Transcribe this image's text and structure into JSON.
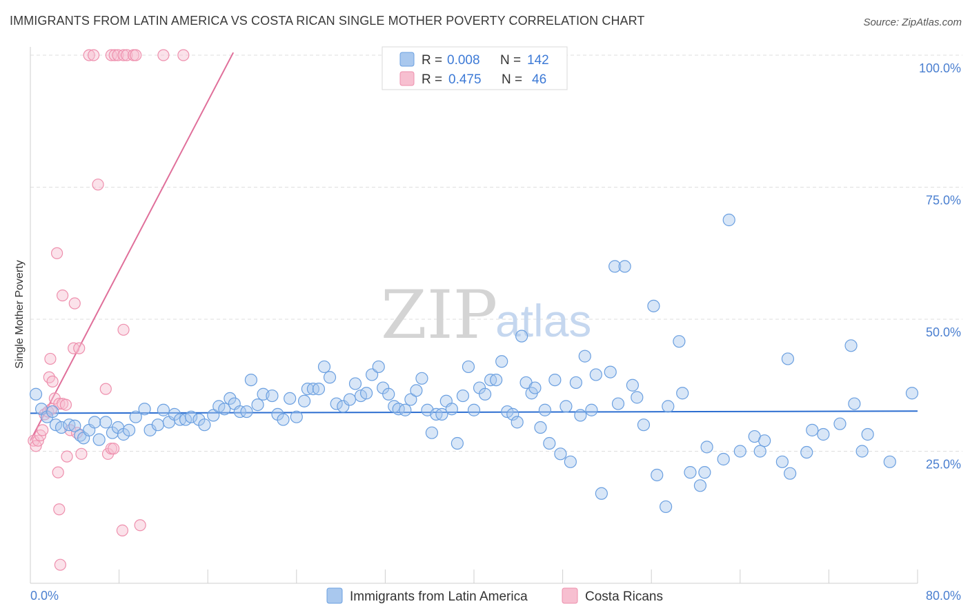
{
  "header": {
    "title": "IMMIGRANTS FROM LATIN AMERICA VS COSTA RICAN SINGLE MOTHER POVERTY CORRELATION CHART",
    "source": "Source: ZipAtlas.com"
  },
  "watermark": {
    "zip": "ZIP",
    "atlas": "atlas"
  },
  "legend_box": {
    "rows": [
      {
        "r_label": "R =",
        "r_value": "0.008",
        "n_label": "N =",
        "n_value": "142"
      },
      {
        "r_label": "R =",
        "r_value": "0.475",
        "n_label": "N =",
        "n_value": "46"
      }
    ]
  },
  "colors": {
    "blue_fill": "#a9c8ee",
    "blue_stroke": "#6a9fe0",
    "blue_line": "#2b6dd0",
    "pink_fill": "#f7bfd0",
    "pink_stroke": "#ee8fad",
    "pink_line": "#e06f9a",
    "tick_text": "#4a7fd0"
  },
  "chart_data": {
    "type": "scatter",
    "title": "IMMIGRANTS FROM LATIN AMERICA VS COSTA RICAN SINGLE MOTHER POVERTY CORRELATION CHART",
    "xlabel": "",
    "ylabel": "Single Mother Poverty",
    "xlim": [
      0,
      80
    ],
    "ylim": [
      0,
      102
    ],
    "x_tick_labels": [
      "0.0%",
      "80.0%"
    ],
    "y_tick_labels": [
      {
        "value": 25,
        "label": "25.0%"
      },
      {
        "value": 50,
        "label": "50.0%"
      },
      {
        "value": 75,
        "label": "75.0%"
      },
      {
        "value": 100,
        "label": "100.0%"
      }
    ],
    "grid": true,
    "legend": "bottom-center",
    "series": [
      {
        "name": "Immigrants from Latin America",
        "color": "#a9c8ee",
        "trend": {
          "x": [
            0,
            80
          ],
          "y": [
            32.2,
            32.6
          ]
        },
        "points": [
          [
            0.5,
            35.8
          ],
          [
            1.0,
            33.0
          ],
          [
            1.5,
            31.5
          ],
          [
            2.0,
            32.5
          ],
          [
            2.3,
            30.0
          ],
          [
            2.8,
            29.5
          ],
          [
            3.5,
            30.0
          ],
          [
            4.0,
            29.8
          ],
          [
            4.5,
            28.0
          ],
          [
            4.8,
            27.5
          ],
          [
            5.3,
            29.0
          ],
          [
            5.8,
            30.5
          ],
          [
            6.2,
            27.2
          ],
          [
            6.8,
            30.5
          ],
          [
            7.4,
            28.5
          ],
          [
            7.9,
            29.5
          ],
          [
            8.4,
            28.2
          ],
          [
            8.9,
            29.0
          ],
          [
            9.5,
            31.5
          ],
          [
            10.3,
            33.0
          ],
          [
            10.8,
            29.0
          ],
          [
            11.5,
            30.0
          ],
          [
            12.0,
            32.8
          ],
          [
            12.5,
            30.5
          ],
          [
            13.0,
            32.0
          ],
          [
            13.5,
            31.0
          ],
          [
            14.0,
            31.0
          ],
          [
            14.5,
            31.5
          ],
          [
            15.2,
            31.0
          ],
          [
            15.7,
            30.0
          ],
          [
            16.5,
            31.8
          ],
          [
            17.0,
            33.5
          ],
          [
            17.5,
            33.0
          ],
          [
            18.0,
            35.0
          ],
          [
            18.4,
            34.0
          ],
          [
            18.9,
            32.5
          ],
          [
            19.5,
            32.5
          ],
          [
            19.9,
            38.5
          ],
          [
            20.5,
            33.8
          ],
          [
            21.0,
            35.8
          ],
          [
            21.8,
            35.5
          ],
          [
            22.3,
            32.0
          ],
          [
            22.8,
            31.0
          ],
          [
            23.4,
            35.0
          ],
          [
            24.0,
            31.5
          ],
          [
            24.7,
            34.5
          ],
          [
            25.0,
            36.8
          ],
          [
            25.5,
            36.8
          ],
          [
            26.0,
            36.8
          ],
          [
            26.5,
            41.0
          ],
          [
            27.0,
            39.0
          ],
          [
            27.6,
            34.0
          ],
          [
            28.2,
            33.5
          ],
          [
            28.8,
            34.8
          ],
          [
            29.3,
            37.8
          ],
          [
            29.8,
            35.5
          ],
          [
            30.3,
            36.0
          ],
          [
            30.8,
            39.5
          ],
          [
            31.4,
            41.0
          ],
          [
            31.8,
            37.0
          ],
          [
            32.3,
            35.8
          ],
          [
            32.8,
            33.5
          ],
          [
            33.2,
            33.0
          ],
          [
            33.8,
            32.8
          ],
          [
            34.3,
            34.8
          ],
          [
            34.8,
            36.5
          ],
          [
            35.3,
            38.8
          ],
          [
            35.8,
            32.8
          ],
          [
            36.2,
            28.5
          ],
          [
            36.6,
            32.0
          ],
          [
            37.1,
            32.0
          ],
          [
            37.5,
            34.5
          ],
          [
            38.0,
            33.0
          ],
          [
            38.5,
            26.5
          ],
          [
            39.0,
            35.5
          ],
          [
            39.5,
            41.0
          ],
          [
            40.0,
            32.8
          ],
          [
            40.5,
            37.0
          ],
          [
            41.0,
            35.8
          ],
          [
            41.5,
            38.5
          ],
          [
            42.0,
            38.5
          ],
          [
            42.5,
            42.0
          ],
          [
            43.0,
            32.5
          ],
          [
            43.5,
            32.0
          ],
          [
            43.9,
            30.5
          ],
          [
            44.3,
            46.8
          ],
          [
            44.7,
            38.0
          ],
          [
            45.2,
            36.0
          ],
          [
            45.5,
            37.0
          ],
          [
            46.0,
            29.5
          ],
          [
            46.4,
            32.8
          ],
          [
            46.8,
            26.5
          ],
          [
            47.3,
            38.5
          ],
          [
            47.8,
            24.5
          ],
          [
            48.3,
            33.5
          ],
          [
            48.7,
            23.0
          ],
          [
            49.2,
            38.0
          ],
          [
            49.6,
            31.8
          ],
          [
            50.0,
            43.0
          ],
          [
            50.6,
            32.8
          ],
          [
            51.0,
            39.5
          ],
          [
            51.5,
            17.0
          ],
          [
            52.3,
            40.0
          ],
          [
            52.7,
            60.0
          ],
          [
            53.0,
            34.0
          ],
          [
            53.6,
            60.0
          ],
          [
            54.3,
            37.5
          ],
          [
            54.7,
            35.2
          ],
          [
            55.3,
            30.0
          ],
          [
            56.2,
            52.5
          ],
          [
            56.5,
            20.5
          ],
          [
            57.3,
            14.5
          ],
          [
            57.5,
            33.5
          ],
          [
            58.5,
            45.8
          ],
          [
            58.8,
            36.0
          ],
          [
            59.5,
            21.0
          ],
          [
            60.4,
            18.5
          ],
          [
            60.8,
            21.0
          ],
          [
            61.0,
            25.8
          ],
          [
            62.5,
            23.5
          ],
          [
            63.0,
            68.8
          ],
          [
            64.0,
            25.0
          ],
          [
            65.3,
            27.8
          ],
          [
            65.8,
            25.0
          ],
          [
            66.2,
            27.0
          ],
          [
            67.8,
            23.0
          ],
          [
            68.3,
            42.5
          ],
          [
            68.5,
            20.8
          ],
          [
            70.0,
            24.8
          ],
          [
            70.5,
            29.0
          ],
          [
            71.5,
            28.2
          ],
          [
            73.0,
            30.2
          ],
          [
            74.0,
            45.0
          ],
          [
            74.3,
            34.0
          ],
          [
            75.0,
            25.0
          ],
          [
            75.5,
            28.2
          ],
          [
            77.5,
            23.0
          ],
          [
            79.5,
            36.0
          ]
        ]
      },
      {
        "name": "Costa Ricans",
        "color": "#f7bfd0",
        "trend": {
          "x": [
            0,
            18.3
          ],
          "y": [
            27.0,
            100.5
          ]
        },
        "points": [
          [
            0.3,
            27.0
          ],
          [
            0.5,
            26.0
          ],
          [
            0.7,
            27.0
          ],
          [
            0.9,
            28.0
          ],
          [
            1.1,
            29.0
          ],
          [
            1.3,
            32.0
          ],
          [
            1.6,
            32.5
          ],
          [
            1.9,
            33.0
          ],
          [
            1.7,
            39.0
          ],
          [
            1.8,
            42.5
          ],
          [
            2.0,
            38.2
          ],
          [
            2.2,
            35.0
          ],
          [
            2.6,
            34.0
          ],
          [
            2.9,
            34.0
          ],
          [
            3.2,
            33.8
          ],
          [
            2.5,
            21.0
          ],
          [
            2.6,
            14.0
          ],
          [
            2.7,
            3.5
          ],
          [
            2.4,
            62.5
          ],
          [
            2.9,
            54.5
          ],
          [
            3.3,
            24.0
          ],
          [
            3.6,
            29.0
          ],
          [
            3.9,
            44.5
          ],
          [
            4.2,
            28.5
          ],
          [
            4.6,
            24.5
          ],
          [
            4.0,
            53.0
          ],
          [
            4.4,
            44.5
          ],
          [
            5.3,
            100.0
          ],
          [
            5.7,
            100.0
          ],
          [
            6.1,
            75.5
          ],
          [
            7.3,
            100.0
          ],
          [
            7.6,
            100.0
          ],
          [
            7.9,
            100.0
          ],
          [
            8.4,
            100.0
          ],
          [
            8.7,
            100.0
          ],
          [
            9.3,
            100.0
          ],
          [
            9.5,
            100.0
          ],
          [
            12.0,
            100.0
          ],
          [
            13.8,
            100.0
          ],
          [
            6.8,
            36.8
          ],
          [
            7.0,
            24.5
          ],
          [
            7.3,
            25.5
          ],
          [
            7.5,
            25.5
          ],
          [
            8.4,
            48.0
          ],
          [
            8.3,
            10.0
          ],
          [
            9.9,
            11.0
          ]
        ]
      }
    ]
  }
}
